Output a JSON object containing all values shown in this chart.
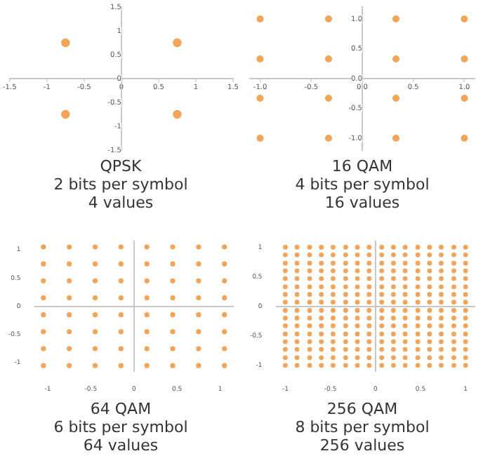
{
  "chart_data": [
    {
      "type": "scatter",
      "title": "QPSK",
      "subtitle": "2 bits per symbol",
      "annotations": [
        "4 values"
      ],
      "marker": "circle",
      "xlim": [
        -1.5,
        1.5
      ],
      "ylim": [
        -1.5,
        1.5
      ],
      "xticks": [
        -1.5,
        -1,
        -0.5,
        0,
        0.5,
        1,
        1.5
      ],
      "yticks": [
        -1.5,
        -1,
        -0.5,
        0,
        0.5,
        1,
        1.5
      ],
      "series": [
        {
          "color": "#f4a456",
          "x": [
            -0.75,
            0.75,
            -0.75,
            0.75
          ],
          "values": [
            0.75,
            0.75,
            -0.75,
            -0.75
          ]
        }
      ]
    },
    {
      "type": "scatter",
      "title": "16 QAM",
      "subtitle": "4 bits per symbol",
      "annotations": [
        "16 values"
      ],
      "marker": "circle",
      "xlim": [
        -1.1,
        1.1
      ],
      "ylim": [
        -1.2,
        1.2
      ],
      "xticks": [
        {
          "value": -1,
          "label": "-1.0"
        },
        -0.5,
        {
          "value": 0,
          "label": "0.0"
        },
        0.5,
        {
          "value": 1,
          "label": "1.0"
        }
      ],
      "yticks": [
        {
          "value": -1,
          "label": "-1.0"
        },
        -0.5,
        {
          "value": 0,
          "label": "0.0"
        },
        0.5,
        {
          "value": 1,
          "label": "1.0"
        }
      ],
      "series": [
        {
          "color": "#f4a456",
          "x": [
            -1,
            -0.33,
            0.33,
            1,
            -1,
            -0.33,
            0.33,
            1,
            -1,
            -0.33,
            0.33,
            1,
            -1,
            -0.33,
            0.33,
            1
          ],
          "values": [
            1,
            1,
            1,
            1,
            0.33,
            0.33,
            0.33,
            0.33,
            -0.33,
            -0.33,
            -0.33,
            -0.33,
            -1,
            -1,
            -1,
            -1
          ]
        }
      ]
    },
    {
      "type": "scatter",
      "title": "64 QAM",
      "subtitle": "6 bits per symbol",
      "annotations": [
        "64 values"
      ],
      "marker": "circle",
      "xlim": [
        -1.15,
        1.15
      ],
      "ylim": [
        -1.15,
        1.15
      ],
      "xticks": [
        -1,
        -0.5,
        0,
        0.5,
        1
      ],
      "yticks": [
        -1,
        -0.5,
        0,
        0.5,
        1
      ],
      "series": [
        {
          "color": "#f4a456",
          "x": [
            -1.05,
            -0.75,
            -0.45,
            -0.15,
            0.15,
            0.45,
            0.75,
            1.05,
            -1.05,
            -0.75,
            -0.45,
            -0.15,
            0.15,
            0.45,
            0.75,
            1.05,
            -1.05,
            -0.75,
            -0.45,
            -0.15,
            0.15,
            0.45,
            0.75,
            1.05,
            -1.05,
            -0.75,
            -0.45,
            -0.15,
            0.15,
            0.45,
            0.75,
            1.05,
            -1.05,
            -0.75,
            -0.45,
            -0.15,
            0.15,
            0.45,
            0.75,
            1.05,
            -1.05,
            -0.75,
            -0.45,
            -0.15,
            0.15,
            0.45,
            0.75,
            1.05,
            -1.05,
            -0.75,
            -0.45,
            -0.15,
            0.15,
            0.45,
            0.75,
            1.05,
            -1.05,
            -0.75,
            -0.45,
            -0.15,
            0.15,
            0.45,
            0.75,
            1.05
          ],
          "values": [
            1.05,
            1.05,
            1.05,
            1.05,
            1.05,
            1.05,
            1.05,
            1.05,
            0.75,
            0.75,
            0.75,
            0.75,
            0.75,
            0.75,
            0.75,
            0.75,
            0.45,
            0.45,
            0.45,
            0.45,
            0.45,
            0.45,
            0.45,
            0.45,
            0.15,
            0.15,
            0.15,
            0.15,
            0.15,
            0.15,
            0.15,
            0.15,
            -0.15,
            -0.15,
            -0.15,
            -0.15,
            -0.15,
            -0.15,
            -0.15,
            -0.15,
            -0.45,
            -0.45,
            -0.45,
            -0.45,
            -0.45,
            -0.45,
            -0.45,
            -0.45,
            -0.75,
            -0.75,
            -0.75,
            -0.75,
            -0.75,
            -0.75,
            -0.75,
            -0.75,
            -1.05,
            -1.05,
            -1.05,
            -1.05,
            -1.05,
            -1.05,
            -1.05,
            -1.05
          ]
        }
      ]
    },
    {
      "type": "scatter",
      "title": "256 QAM",
      "subtitle": "8 bits per symbol",
      "annotations": [
        "256 values"
      ],
      "marker": "circle",
      "xlim": [
        -1.1,
        1.1
      ],
      "ylim": [
        -1.1,
        1.1
      ],
      "xticks": [
        -1,
        -0.5,
        0,
        0.5,
        1
      ],
      "yticks": [
        -1,
        -0.5,
        0,
        0.5,
        1
      ],
      "series": [
        {
          "color": "#f4a456",
          "x": [
            -1,
            -0.87,
            -0.73,
            -0.6,
            -0.47,
            -0.33,
            -0.2,
            -0.07,
            0.07,
            0.2,
            0.33,
            0.47,
            0.6,
            0.73,
            0.87,
            1,
            -1,
            -0.87,
            -0.73,
            -0.6,
            -0.47,
            -0.33,
            -0.2,
            -0.07,
            0.07,
            0.2,
            0.33,
            0.47,
            0.6,
            0.73,
            0.87,
            1,
            -1,
            -0.87,
            -0.73,
            -0.6,
            -0.47,
            -0.33,
            -0.2,
            -0.07,
            0.07,
            0.2,
            0.33,
            0.47,
            0.6,
            0.73,
            0.87,
            1,
            -1,
            -0.87,
            -0.73,
            -0.6,
            -0.47,
            -0.33,
            -0.2,
            -0.07,
            0.07,
            0.2,
            0.33,
            0.47,
            0.6,
            0.73,
            0.87,
            1,
            -1,
            -0.87,
            -0.73,
            -0.6,
            -0.47,
            -0.33,
            -0.2,
            -0.07,
            0.07,
            0.2,
            0.33,
            0.47,
            0.6,
            0.73,
            0.87,
            1,
            -1,
            -0.87,
            -0.73,
            -0.6,
            -0.47,
            -0.33,
            -0.2,
            -0.07,
            0.07,
            0.2,
            0.33,
            0.47,
            0.6,
            0.73,
            0.87,
            1,
            -1,
            -0.87,
            -0.73,
            -0.6,
            -0.47,
            -0.33,
            -0.2,
            -0.07,
            0.07,
            0.2,
            0.33,
            0.47,
            0.6,
            0.73,
            0.87,
            1,
            -1,
            -0.87,
            -0.73,
            -0.6,
            -0.47,
            -0.33,
            -0.2,
            -0.07,
            0.07,
            0.2,
            0.33,
            0.47,
            0.6,
            0.73,
            0.87,
            1,
            -1,
            -0.87,
            -0.73,
            -0.6,
            -0.47,
            -0.33,
            -0.2,
            -0.07,
            0.07,
            0.2,
            0.33,
            0.47,
            0.6,
            0.73,
            0.87,
            1,
            -1,
            -0.87,
            -0.73,
            -0.6,
            -0.47,
            -0.33,
            -0.2,
            -0.07,
            0.07,
            0.2,
            0.33,
            0.47,
            0.6,
            0.73,
            0.87,
            1,
            -1,
            -0.87,
            -0.73,
            -0.6,
            -0.47,
            -0.33,
            -0.2,
            -0.07,
            0.07,
            0.2,
            0.33,
            0.47,
            0.6,
            0.73,
            0.87,
            1,
            -1,
            -0.87,
            -0.73,
            -0.6,
            -0.47,
            -0.33,
            -0.2,
            -0.07,
            0.07,
            0.2,
            0.33,
            0.47,
            0.6,
            0.73,
            0.87,
            1,
            -1,
            -0.87,
            -0.73,
            -0.6,
            -0.47,
            -0.33,
            -0.2,
            -0.07,
            0.07,
            0.2,
            0.33,
            0.47,
            0.6,
            0.73,
            0.87,
            1,
            -1,
            -0.87,
            -0.73,
            -0.6,
            -0.47,
            -0.33,
            -0.2,
            -0.07,
            0.07,
            0.2,
            0.33,
            0.47,
            0.6,
            0.73,
            0.87,
            1,
            -1,
            -0.87,
            -0.73,
            -0.6,
            -0.47,
            -0.33,
            -0.2,
            -0.07,
            0.07,
            0.2,
            0.33,
            0.47,
            0.6,
            0.73,
            0.87,
            1,
            -1,
            -0.87,
            -0.73,
            -0.6,
            -0.47,
            -0.33,
            -0.2,
            -0.07,
            0.07,
            0.2,
            0.33,
            0.47,
            0.6,
            0.73,
            0.87,
            1
          ],
          "values": [
            1,
            1,
            1,
            1,
            1,
            1,
            1,
            1,
            1,
            1,
            1,
            1,
            1,
            1,
            1,
            1,
            0.87,
            0.87,
            0.87,
            0.87,
            0.87,
            0.87,
            0.87,
            0.87,
            0.87,
            0.87,
            0.87,
            0.87,
            0.87,
            0.87,
            0.87,
            0.87,
            0.73,
            0.73,
            0.73,
            0.73,
            0.73,
            0.73,
            0.73,
            0.73,
            0.73,
            0.73,
            0.73,
            0.73,
            0.73,
            0.73,
            0.73,
            0.73,
            0.6,
            0.6,
            0.6,
            0.6,
            0.6,
            0.6,
            0.6,
            0.6,
            0.6,
            0.6,
            0.6,
            0.6,
            0.6,
            0.6,
            0.6,
            0.6,
            0.47,
            0.47,
            0.47,
            0.47,
            0.47,
            0.47,
            0.47,
            0.47,
            0.47,
            0.47,
            0.47,
            0.47,
            0.47,
            0.47,
            0.47,
            0.47,
            0.33,
            0.33,
            0.33,
            0.33,
            0.33,
            0.33,
            0.33,
            0.33,
            0.33,
            0.33,
            0.33,
            0.33,
            0.33,
            0.33,
            0.33,
            0.33,
            0.2,
            0.2,
            0.2,
            0.2,
            0.2,
            0.2,
            0.2,
            0.2,
            0.2,
            0.2,
            0.2,
            0.2,
            0.2,
            0.2,
            0.2,
            0.2,
            0.07,
            0.07,
            0.07,
            0.07,
            0.07,
            0.07,
            0.07,
            0.07,
            0.07,
            0.07,
            0.07,
            0.07,
            0.07,
            0.07,
            0.07,
            0.07,
            -0.07,
            -0.07,
            -0.07,
            -0.07,
            -0.07,
            -0.07,
            -0.07,
            -0.07,
            -0.07,
            -0.07,
            -0.07,
            -0.07,
            -0.07,
            -0.07,
            -0.07,
            -0.07,
            -0.2,
            -0.2,
            -0.2,
            -0.2,
            -0.2,
            -0.2,
            -0.2,
            -0.2,
            -0.2,
            -0.2,
            -0.2,
            -0.2,
            -0.2,
            -0.2,
            -0.2,
            -0.2,
            -0.33,
            -0.33,
            -0.33,
            -0.33,
            -0.33,
            -0.33,
            -0.33,
            -0.33,
            -0.33,
            -0.33,
            -0.33,
            -0.33,
            -0.33,
            -0.33,
            -0.33,
            -0.33,
            -0.47,
            -0.47,
            -0.47,
            -0.47,
            -0.47,
            -0.47,
            -0.47,
            -0.47,
            -0.47,
            -0.47,
            -0.47,
            -0.47,
            -0.47,
            -0.47,
            -0.47,
            -0.47,
            -0.6,
            -0.6,
            -0.6,
            -0.6,
            -0.6,
            -0.6,
            -0.6,
            -0.6,
            -0.6,
            -0.6,
            -0.6,
            -0.6,
            -0.6,
            -0.6,
            -0.6,
            -0.6,
            -0.73,
            -0.73,
            -0.73,
            -0.73,
            -0.73,
            -0.73,
            -0.73,
            -0.73,
            -0.73,
            -0.73,
            -0.73,
            -0.73,
            -0.73,
            -0.73,
            -0.73,
            -0.73,
            -0.87,
            -0.87,
            -0.87,
            -0.87,
            -0.87,
            -0.87,
            -0.87,
            -0.87,
            -0.87,
            -0.87,
            -0.87,
            -0.87,
            -0.87,
            -0.87,
            -0.87,
            -0.87,
            -1,
            -1,
            -1,
            -1,
            -1,
            -1,
            -1,
            -1,
            -1,
            -1,
            -1,
            -1,
            -1,
            -1,
            -1,
            -1
          ]
        }
      ]
    }
  ]
}
